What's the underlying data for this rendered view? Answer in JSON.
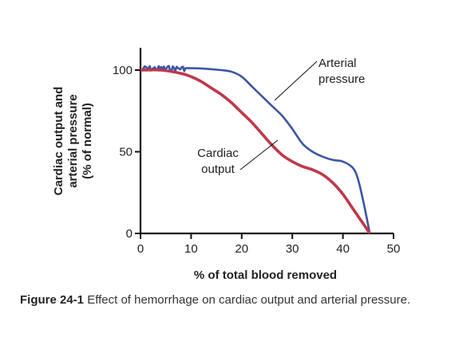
{
  "chart_data": {
    "type": "line",
    "xlabel": "% of total blood removed",
    "ylabel_lines": [
      "Cardiac output and",
      "arterial pressure",
      "(% of normal)"
    ],
    "xlim": [
      0,
      50
    ],
    "ylim": [
      0,
      100
    ],
    "xticks": [
      "0",
      "10",
      "20",
      "30",
      "40",
      "50"
    ],
    "yticks": [
      "0",
      "50",
      "100"
    ],
    "grid": false,
    "series": [
      {
        "name": "Arterial pressure",
        "label_lines": [
          "Arterial",
          "pressure"
        ],
        "color": "#3b55a6",
        "noisy_until_x": 9,
        "x": [
          0,
          4,
          8,
          12,
          16,
          18,
          20,
          22,
          24,
          26,
          28,
          30,
          32,
          34,
          36,
          38,
          40,
          42,
          43,
          44,
          44.8,
          45.3
        ],
        "y": [
          101,
          101,
          101,
          101,
          100,
          99,
          96,
          90,
          84,
          78,
          72,
          64,
          55,
          50,
          47,
          45,
          44,
          40,
          33,
          20,
          8,
          0
        ]
      },
      {
        "name": "Cardiac output",
        "label_lines": [
          "Cardiac",
          "output"
        ],
        "color": "#c0384a",
        "x": [
          0,
          4,
          8,
          10,
          12,
          14,
          16,
          18,
          20,
          22,
          24,
          26,
          28,
          30,
          32,
          34,
          36,
          38,
          40,
          42,
          44,
          45.3
        ],
        "y": [
          100,
          100,
          98,
          96,
          93,
          89,
          85,
          80,
          74,
          68,
          61,
          54,
          48,
          44,
          41,
          39,
          36,
          31,
          24,
          15,
          6,
          0
        ]
      }
    ]
  },
  "caption": {
    "label": "Figure 24-1",
    "text": "Effect of hemorrhage on cardiac output and arterial pressure."
  }
}
